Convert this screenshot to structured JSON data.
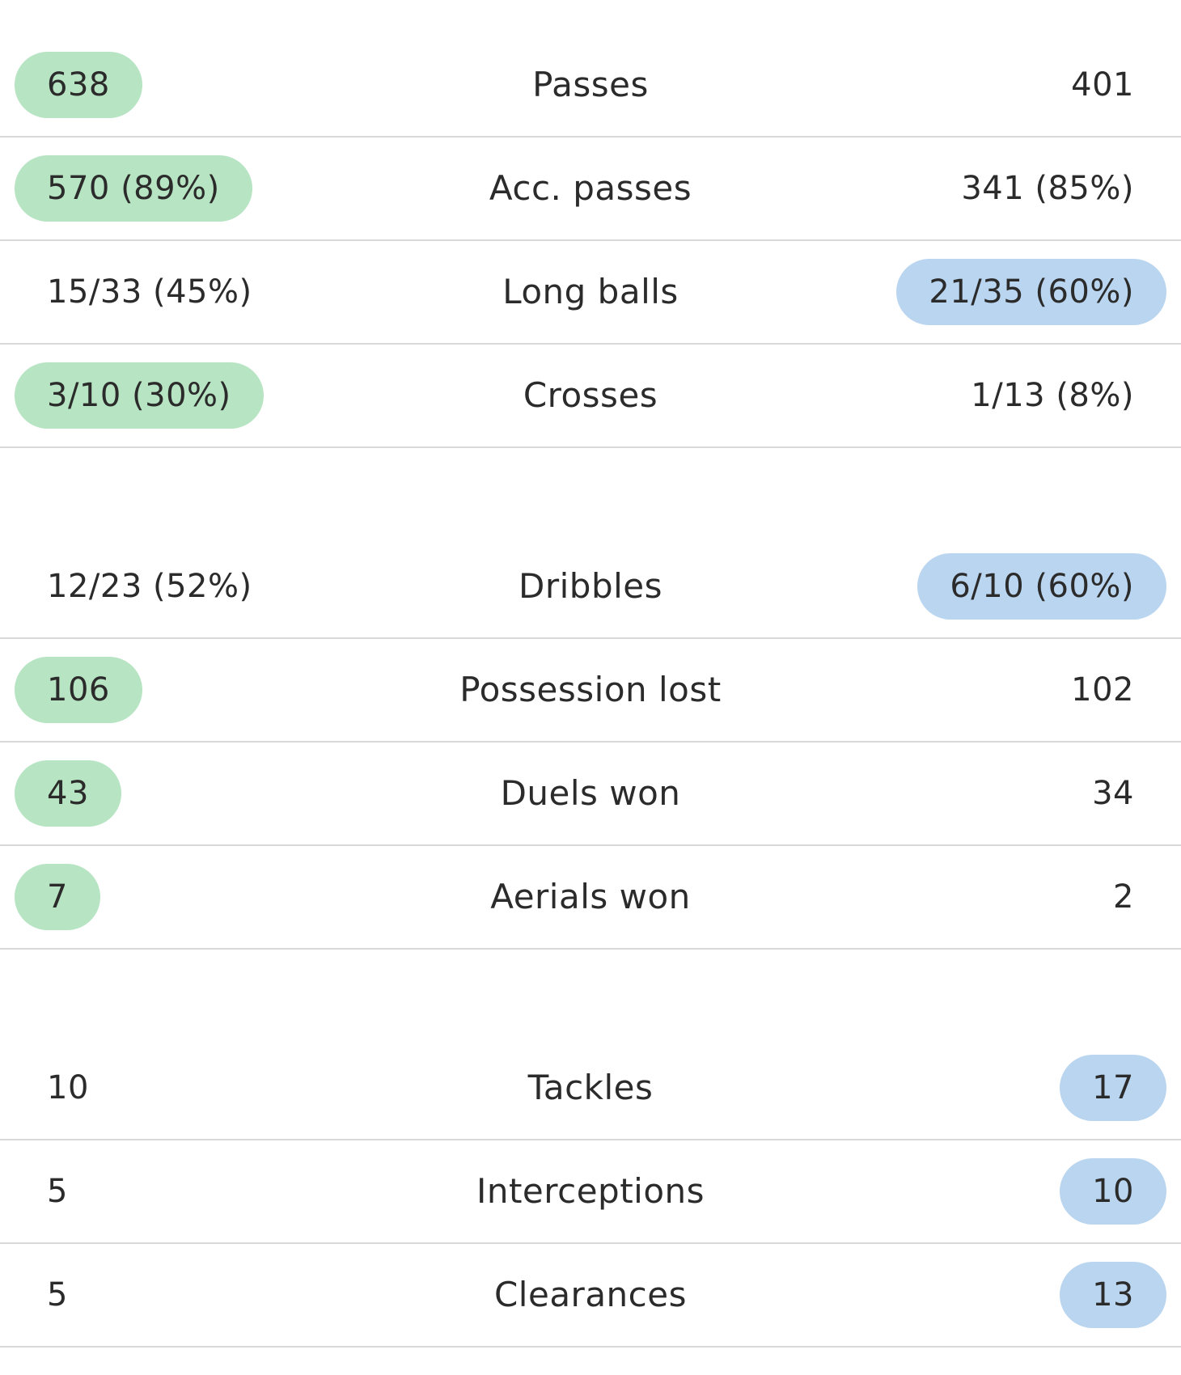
{
  "groups": [
    {
      "rows": [
        {
          "label": "Passes",
          "home": "638",
          "away": "401",
          "highlight": "home"
        },
        {
          "label": "Acc. passes",
          "home": "570 (89%)",
          "away": "341 (85%)",
          "highlight": "home"
        },
        {
          "label": "Long balls",
          "home": "15/33 (45%)",
          "away": "21/35 (60%)",
          "highlight": "away"
        },
        {
          "label": "Crosses",
          "home": "3/10 (30%)",
          "away": "1/13 (8%)",
          "highlight": "home"
        }
      ]
    },
    {
      "rows": [
        {
          "label": "Dribbles",
          "home": "12/23 (52%)",
          "away": "6/10 (60%)",
          "highlight": "away"
        },
        {
          "label": "Possession lost",
          "home": "106",
          "away": "102",
          "highlight": "home"
        },
        {
          "label": "Duels won",
          "home": "43",
          "away": "34",
          "highlight": "home"
        },
        {
          "label": "Aerials won",
          "home": "7",
          "away": "2",
          "highlight": "home"
        }
      ]
    },
    {
      "rows": [
        {
          "label": "Tackles",
          "home": "10",
          "away": "17",
          "highlight": "away"
        },
        {
          "label": "Interceptions",
          "home": "5",
          "away": "10",
          "highlight": "away"
        },
        {
          "label": "Clearances",
          "home": "5",
          "away": "13",
          "highlight": "away"
        }
      ]
    }
  ],
  "colors": {
    "home_highlight": "#b7e4c2",
    "away_highlight": "#bad5f0",
    "divider": "#d9d9d9",
    "text": "#2b2b2b"
  }
}
